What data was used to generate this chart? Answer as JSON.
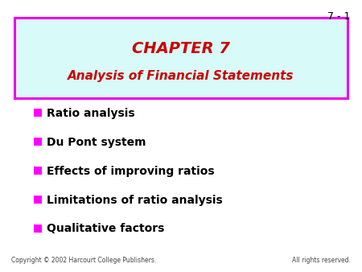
{
  "slide_number": "7 - 1",
  "title_line1": "CHAPTER 7",
  "title_line2": "Analysis of Financial Statements",
  "title_color": "#cc0000",
  "title_bg_color": "#d8faf8",
  "title_border_color": "#ee00ee",
  "bullet_color": "#ff00ff",
  "bullet_text_color": "#000000",
  "bullet_items": [
    "Ratio analysis",
    "Du Pont system",
    "Effects of improving ratios",
    "Limitations of ratio analysis",
    "Qualitative factors"
  ],
  "footer_left": "Copyright © 2002 Harcourt College Publishers.",
  "footer_right": "All rights reserved.",
  "bg_color": "#ffffff",
  "slide_number_color": "#000000",
  "title_fontsize1": 14,
  "title_fontsize2": 11,
  "bullet_fontsize": 10,
  "footer_fontsize": 5.5,
  "slide_num_fontsize": 9
}
